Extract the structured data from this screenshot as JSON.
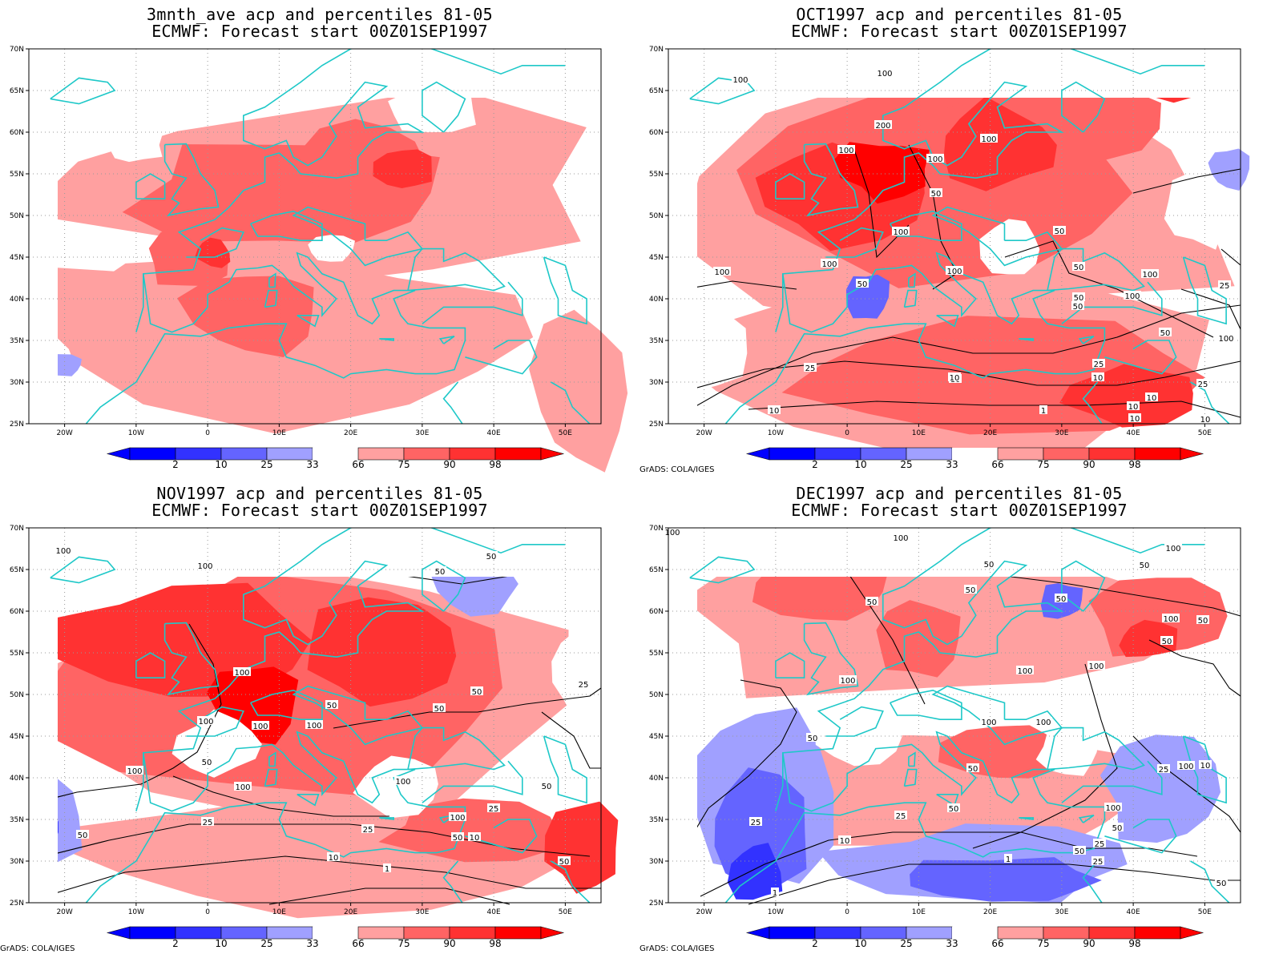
{
  "colors": {
    "blue_98": "#0000ff",
    "blue_90": "#3232ff",
    "blue_75": "#6464ff",
    "blue_66": "#a0a0ff",
    "red_66": "#ffa0a0",
    "red_75": "#ff6464",
    "red_90": "#ff3232",
    "red_98": "#ff0000",
    "coast": "#1ec8c8",
    "contour": "#000000",
    "grid": "#9a9a9a"
  },
  "axes": {
    "lon_labels": [
      "20W",
      "10W",
      "0",
      "10E",
      "20E",
      "30E",
      "40E",
      "50E"
    ],
    "lat_labels": [
      "70N",
      "65N",
      "60N",
      "55N",
      "50N",
      "45N",
      "40N",
      "35N",
      "30N",
      "25N"
    ],
    "lon_range": [
      -25,
      55
    ],
    "lat_range": [
      25,
      70
    ]
  },
  "colorbar": {
    "labels": [
      "2",
      "10",
      "25",
      "33",
      "66",
      "75",
      "90",
      "98"
    ]
  },
  "credit": "GrADS: COLA/IGES",
  "panels": [
    {
      "title1": "3mnth_ave acp and percentiles 81-05",
      "title2": "ECMWF: Forecast start 00Z01SEP1997",
      "show_credit": false,
      "contours": []
    },
    {
      "title1": "OCT1997 acp and percentiles 81-05",
      "title2": "ECMWF: Forecast start 00Z01SEP1997",
      "show_credit": true,
      "contours": [
        "100",
        "100",
        "200",
        "100",
        "100",
        "100",
        "50",
        "100",
        "50",
        "100",
        "100",
        "50",
        "100",
        "50",
        "100",
        "100",
        "50",
        "50",
        "25",
        "10",
        "25",
        "10",
        "10",
        "1",
        "10",
        "10",
        "25",
        "10",
        "10",
        "10",
        "25",
        "50",
        "100"
      ]
    },
    {
      "title1": "NOV1997 acp and percentiles 81-05",
      "title2": "ECMWF: Forecast start 00Z01SEP1997",
      "show_credit": true,
      "contours": [
        "50",
        "100",
        "100",
        "50",
        "100",
        "50",
        "100",
        "100",
        "100",
        "50",
        "25",
        "50",
        "100",
        "100",
        "50",
        "100",
        "50",
        "25",
        "25",
        "100",
        "25",
        "50",
        "10",
        "10",
        "1",
        "50",
        "50"
      ]
    },
    {
      "title1": "DEC1997 acp and percentiles 81-05",
      "title2": "ECMWF: Forecast start 00Z01SEP1997",
      "show_credit": true,
      "contours": [
        "100",
        "100",
        "50",
        "50",
        "50",
        "50",
        "50",
        "100",
        "100",
        "50",
        "50",
        "100",
        "100",
        "100",
        "100",
        "100",
        "50",
        "50",
        "25",
        "10",
        "50",
        "100",
        "25",
        "10",
        "1",
        "1",
        "25",
        "50",
        "25",
        "25",
        "50",
        "100",
        "50"
      ]
    }
  ]
}
